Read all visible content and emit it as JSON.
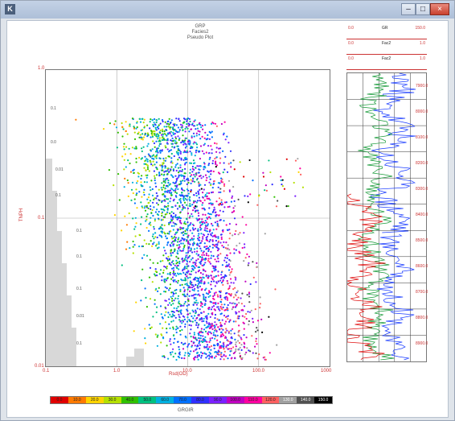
{
  "window": {
    "app_icon": "app-icon",
    "title_text": "",
    "buttons": [
      "minimize-icon",
      "maximize-icon",
      "close-icon"
    ]
  },
  "plot_titles": [
    "GRP",
    "Facies2",
    "Pseudo Plot"
  ],
  "chart_data": {
    "type": "scatter",
    "title": "",
    "xlabel": "Rsd(OD)",
    "ylabel": "TNPH",
    "x_ticks": [
      "0.1",
      "1.0",
      "10.0",
      "100.0",
      "1000"
    ],
    "y_ticks": [
      "1.0",
      "0.1",
      "0.01"
    ],
    "xlim": [
      0.1,
      1000
    ],
    "ylim": [
      0.01,
      1.0
    ],
    "x_scale": "log",
    "y_scale": "log",
    "grid": true,
    "side_histogram_labels": [
      "0.1",
      "0.0",
      "0.01",
      "0.1",
      "0.1",
      "0.1",
      "0.1",
      "0.01",
      "0.1"
    ],
    "colorbar": {
      "label": "GRGIR",
      "ticks": [
        "0.0",
        "10.0",
        "20.0",
        "30.0",
        "40.0",
        "50.0",
        "60.0",
        "70.0",
        "80.0",
        "90.0",
        "100.0",
        "110.0",
        "120.0",
        "130.0",
        "140.0",
        "150.0"
      ],
      "colors": [
        "#e00000",
        "#ff7a00",
        "#ffd400",
        "#b5e000",
        "#30c000",
        "#00c080",
        "#00b0e0",
        "#0070ff",
        "#3030ff",
        "#7a20ff",
        "#c000c0",
        "#ff00a0",
        "#ff6060",
        "#a0a0a0",
        "#505050",
        "#000000"
      ]
    }
  },
  "log_panel": {
    "tracks": [
      {
        "left": "0.0",
        "mid": "GR",
        "right": "150.0",
        "color": "#d22"
      },
      {
        "left": "0.0",
        "mid": "Fac2",
        "right": "1.0",
        "color": "#22a"
      },
      {
        "left": "0.0",
        "mid": "Fac2",
        "right": "1.0",
        "color": "#2a2"
      }
    ],
    "depths": [
      "7900.0",
      "8000.0",
      "8100.0",
      "8200.0",
      "8300.0",
      "8400.0",
      "8500.0",
      "8600.0",
      "8700.0",
      "8800.0",
      "8900.0"
    ]
  }
}
